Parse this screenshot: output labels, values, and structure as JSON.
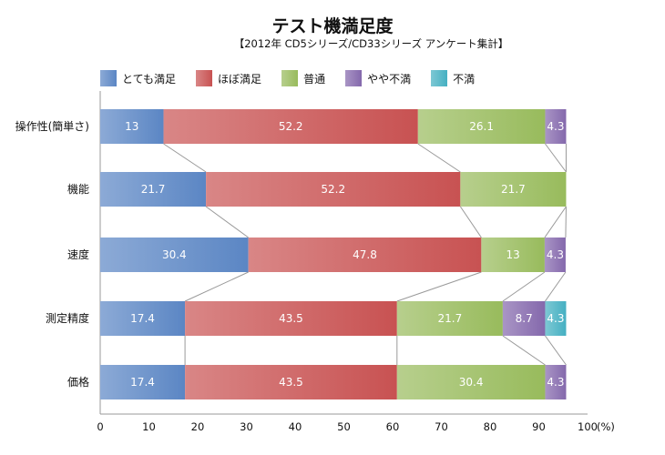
{
  "chart_data": {
    "type": "bar",
    "orientation": "horizontal",
    "stacked": true,
    "title": "テスト機満足度",
    "subtitle": "【2012年 CD5シリーズ/CD33シリーズ アンケート集計】",
    "categories": [
      "操作性(簡単さ)",
      "機能",
      "速度",
      "測定精度",
      "価格"
    ],
    "series": [
      {
        "name": "とても満足",
        "color": "#5b86c4",
        "values": [
          13,
          21.7,
          30.4,
          17.4,
          17.4
        ]
      },
      {
        "name": "ほぼ満足",
        "color": "#c85252",
        "values": [
          52.2,
          52.2,
          47.8,
          43.5,
          43.5
        ]
      },
      {
        "name": "普通",
        "color": "#98bb5c",
        "values": [
          26.1,
          21.7,
          13,
          21.7,
          30.4
        ]
      },
      {
        "name": "やや不満",
        "color": "#8468ac",
        "values": [
          4.3,
          0,
          4.3,
          8.7,
          4.3
        ]
      },
      {
        "name": "不満",
        "color": "#45b0c2",
        "values": [
          0,
          0,
          0,
          4.3,
          0
        ]
      }
    ],
    "xlim": [
      0,
      100
    ],
    "xticks": [
      "0",
      "10",
      "20",
      "30",
      "40",
      "50",
      "60",
      "70",
      "80",
      "90",
      "100"
    ],
    "xunit": "(%)",
    "legend": "top",
    "grid": false,
    "connector_lines": true
  }
}
